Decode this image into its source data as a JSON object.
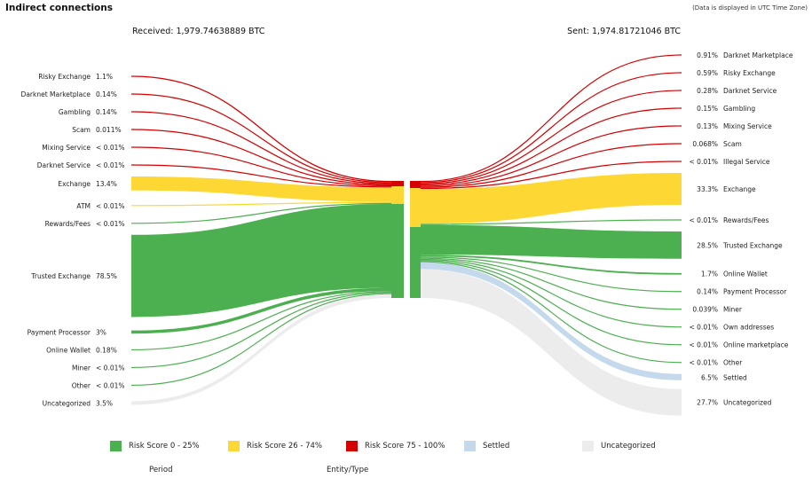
{
  "header": {
    "title": "Indirect connections",
    "timezone_note": "(Data is displayed in UTC Time Zone)",
    "received": "Received: 1,979.74638889 BTC",
    "sent": "Sent: 1,974.81721046 BTC"
  },
  "colors": {
    "low": "#4caf50",
    "medium": "#fdd835",
    "high": "#d50000",
    "settled": "#c5d9ec",
    "uncategorized": "#ececec"
  },
  "chart_data": {
    "type": "sankey",
    "received": [
      {
        "label": "Risky Exchange",
        "pct": "1.1%",
        "category": "high"
      },
      {
        "label": "Darknet Marketplace",
        "pct": "0.14%",
        "category": "high"
      },
      {
        "label": "Gambling",
        "pct": "0.14%",
        "category": "high"
      },
      {
        "label": "Scam",
        "pct": "0.011%",
        "category": "high"
      },
      {
        "label": "Mixing Service",
        "pct": "< 0.01%",
        "category": "high"
      },
      {
        "label": "Darknet Service",
        "pct": "< 0.01%",
        "category": "high"
      },
      {
        "label": "Exchange",
        "pct": "13.4%",
        "category": "medium"
      },
      {
        "label": "ATM",
        "pct": "< 0.01%",
        "category": "medium"
      },
      {
        "label": "Rewards/Fees",
        "pct": "< 0.01%",
        "category": "low"
      },
      {
        "label": "Trusted Exchange",
        "pct": "78.5%",
        "category": "low"
      },
      {
        "label": "Payment Processor",
        "pct": "3%",
        "category": "low"
      },
      {
        "label": "Online Wallet",
        "pct": "0.18%",
        "category": "low"
      },
      {
        "label": "Miner",
        "pct": "< 0.01%",
        "category": "low"
      },
      {
        "label": "Other",
        "pct": "< 0.01%",
        "category": "low"
      },
      {
        "label": "Uncategorized",
        "pct": "3.5%",
        "category": "uncategorized"
      }
    ],
    "sent": [
      {
        "label": "Darknet Marketplace",
        "pct": "0.91%",
        "category": "high"
      },
      {
        "label": "Risky Exchange",
        "pct": "0.59%",
        "category": "high"
      },
      {
        "label": "Darknet Service",
        "pct": "0.28%",
        "category": "high"
      },
      {
        "label": "Gambling",
        "pct": "0.15%",
        "category": "high"
      },
      {
        "label": "Mixing Service",
        "pct": "0.13%",
        "category": "high"
      },
      {
        "label": "Scam",
        "pct": "0.068%",
        "category": "high"
      },
      {
        "label": "Illegal Service",
        "pct": "< 0.01%",
        "category": "high"
      },
      {
        "label": "Exchange",
        "pct": "33.3%",
        "category": "medium"
      },
      {
        "label": "Rewards/Fees",
        "pct": "< 0.01%",
        "category": "low"
      },
      {
        "label": "Trusted Exchange",
        "pct": "28.5%",
        "category": "low"
      },
      {
        "label": "Online Wallet",
        "pct": "1.7%",
        "category": "low"
      },
      {
        "label": "Payment Processor",
        "pct": "0.14%",
        "category": "low"
      },
      {
        "label": "Miner",
        "pct": "0.039%",
        "category": "low"
      },
      {
        "label": "Own addresses",
        "pct": "< 0.01%",
        "category": "low"
      },
      {
        "label": "Online marketplace",
        "pct": "< 0.01%",
        "category": "low"
      },
      {
        "label": "Other",
        "pct": "< 0.01%",
        "category": "low"
      },
      {
        "label": "Settled",
        "pct": "6.5%",
        "category": "settled"
      },
      {
        "label": "Uncategorized",
        "pct": "27.7%",
        "category": "uncategorized"
      }
    ]
  },
  "legend": [
    {
      "label": "Risk Score 0 - 25%",
      "category": "low"
    },
    {
      "label": "Risk Score 26 - 74%",
      "category": "medium"
    },
    {
      "label": "Risk Score 75 - 100%",
      "category": "high"
    },
    {
      "label": "Settled",
      "category": "settled"
    },
    {
      "label": "Uncategorized",
      "category": "uncategorized"
    }
  ],
  "footer": {
    "period": "Period",
    "entity_type": "Entity/Type"
  }
}
